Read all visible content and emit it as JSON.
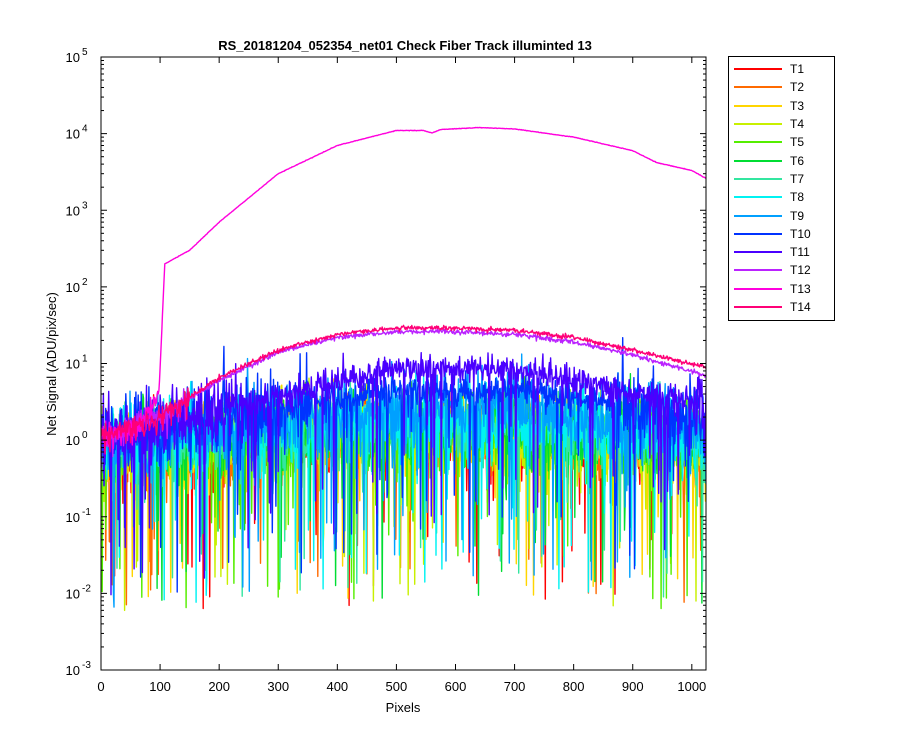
{
  "chart_data": {
    "type": "line",
    "title": "RS_20181204_052354_net01   Check Fiber     Track illuminted 13",
    "xlabel": "Pixels",
    "ylabel": "Net Signal (ADU/pix/sec)",
    "xlim": [
      0,
      1024
    ],
    "ylim": [
      0.001,
      100000
    ],
    "yscale": "log",
    "x_ticks": [
      0,
      100,
      200,
      300,
      400,
      500,
      600,
      700,
      800,
      900,
      1000
    ],
    "y_ticks": [
      {
        "value": 0.001,
        "mantissa": "10",
        "exp": "-3"
      },
      {
        "value": 0.01,
        "mantissa": "10",
        "exp": "-2"
      },
      {
        "value": 0.1,
        "mantissa": "10",
        "exp": "-1"
      },
      {
        "value": 1,
        "mantissa": "10",
        "exp": "0"
      },
      {
        "value": 10,
        "mantissa": "10",
        "exp": "1"
      },
      {
        "value": 100,
        "mantissa": "10",
        "exp": "2"
      },
      {
        "value": 1000,
        "mantissa": "10",
        "exp": "3"
      },
      {
        "value": 10000,
        "mantissa": "10",
        "exp": "4"
      },
      {
        "value": 100000,
        "mantissa": "10",
        "exp": "5"
      }
    ],
    "grid": false,
    "legend_position": "outside-right",
    "series": [
      {
        "name": "T1",
        "color": "#ff0000",
        "profile": "noise",
        "level_x": [
          0,
          100,
          500,
          700,
          1024
        ],
        "level_y": [
          0.7,
          0.9,
          1.1,
          1.1,
          0.8
        ]
      },
      {
        "name": "T2",
        "color": "#ff6a00",
        "profile": "noise",
        "level_x": [
          0,
          100,
          500,
          700,
          1024
        ],
        "level_y": [
          0.7,
          0.9,
          1.2,
          1.2,
          0.8
        ]
      },
      {
        "name": "T3",
        "color": "#ffd500",
        "profile": "noise",
        "level_x": [
          0,
          100,
          500,
          700,
          1024
        ],
        "level_y": [
          0.7,
          0.9,
          1.3,
          1.3,
          0.9
        ]
      },
      {
        "name": "T4",
        "color": "#c8f000",
        "profile": "noise",
        "level_x": [
          0,
          100,
          500,
          700,
          1024
        ],
        "level_y": [
          0.7,
          0.9,
          1.3,
          1.3,
          0.9
        ]
      },
      {
        "name": "T5",
        "color": "#55ee00",
        "profile": "noise",
        "level_x": [
          0,
          100,
          500,
          700,
          1024
        ],
        "level_y": [
          0.7,
          0.9,
          1.4,
          1.4,
          0.9
        ]
      },
      {
        "name": "T6",
        "color": "#00dd33",
        "profile": "noise",
        "level_x": [
          0,
          100,
          500,
          700,
          1024
        ],
        "level_y": [
          0.7,
          0.9,
          1.4,
          1.4,
          0.9
        ]
      },
      {
        "name": "T7",
        "color": "#33e6a0",
        "profile": "noise",
        "level_x": [
          0,
          100,
          500,
          700,
          1024
        ],
        "level_y": [
          0.7,
          1.0,
          1.6,
          1.6,
          1.0
        ]
      },
      {
        "name": "T8",
        "color": "#00f2f2",
        "profile": "noise",
        "level_x": [
          0,
          100,
          500,
          700,
          1024
        ],
        "level_y": [
          0.8,
          1.1,
          1.8,
          1.8,
          1.1
        ]
      },
      {
        "name": "T9",
        "color": "#00a0ff",
        "profile": "noise",
        "level_x": [
          0,
          100,
          500,
          700,
          1024
        ],
        "level_y": [
          0.9,
          1.2,
          2.6,
          2.6,
          1.4
        ]
      },
      {
        "name": "T10",
        "color": "#0033ff",
        "profile": "noise",
        "level_x": [
          0,
          100,
          500,
          700,
          1024
        ],
        "level_y": [
          1.0,
          1.4,
          4.5,
          4.5,
          2.0
        ]
      },
      {
        "name": "T11",
        "color": "#4a00ff",
        "profile": "noise",
        "level_x": [
          0,
          100,
          500,
          700,
          1024
        ],
        "level_y": [
          1.1,
          1.7,
          8.5,
          8.5,
          2.8
        ]
      },
      {
        "name": "T12",
        "color": "#bb22ff",
        "profile": "smooth",
        "level_x": [
          0,
          100,
          200,
          300,
          400,
          500,
          600,
          700,
          800,
          900,
          1024
        ],
        "level_y": [
          1.1,
          2.0,
          6.0,
          14.0,
          22.0,
          26.0,
          26.0,
          24.0,
          19.0,
          13.0,
          7.0
        ]
      },
      {
        "name": "T13",
        "color": "#ff00dd",
        "profile": "bright",
        "level_x": [
          0,
          60,
          98,
          108,
          150,
          200,
          300,
          400,
          500,
          545,
          560,
          575,
          640,
          700,
          800,
          900,
          940,
          1000,
          1024
        ],
        "level_y": [
          1.1,
          1.4,
          4.0,
          200,
          300,
          700,
          3000,
          7000,
          11000,
          11000,
          10200,
          11300,
          12000,
          11500,
          9000,
          6000,
          4200,
          3300,
          2600
        ]
      },
      {
        "name": "T14",
        "color": "#ff0077",
        "profile": "smooth",
        "level_x": [
          0,
          100,
          200,
          300,
          400,
          500,
          600,
          700,
          800,
          900,
          1024
        ],
        "level_y": [
          1.1,
          2.0,
          6.5,
          15.0,
          24.0,
          29.0,
          29.0,
          27.0,
          22.0,
          15.0,
          9.0
        ]
      }
    ]
  }
}
